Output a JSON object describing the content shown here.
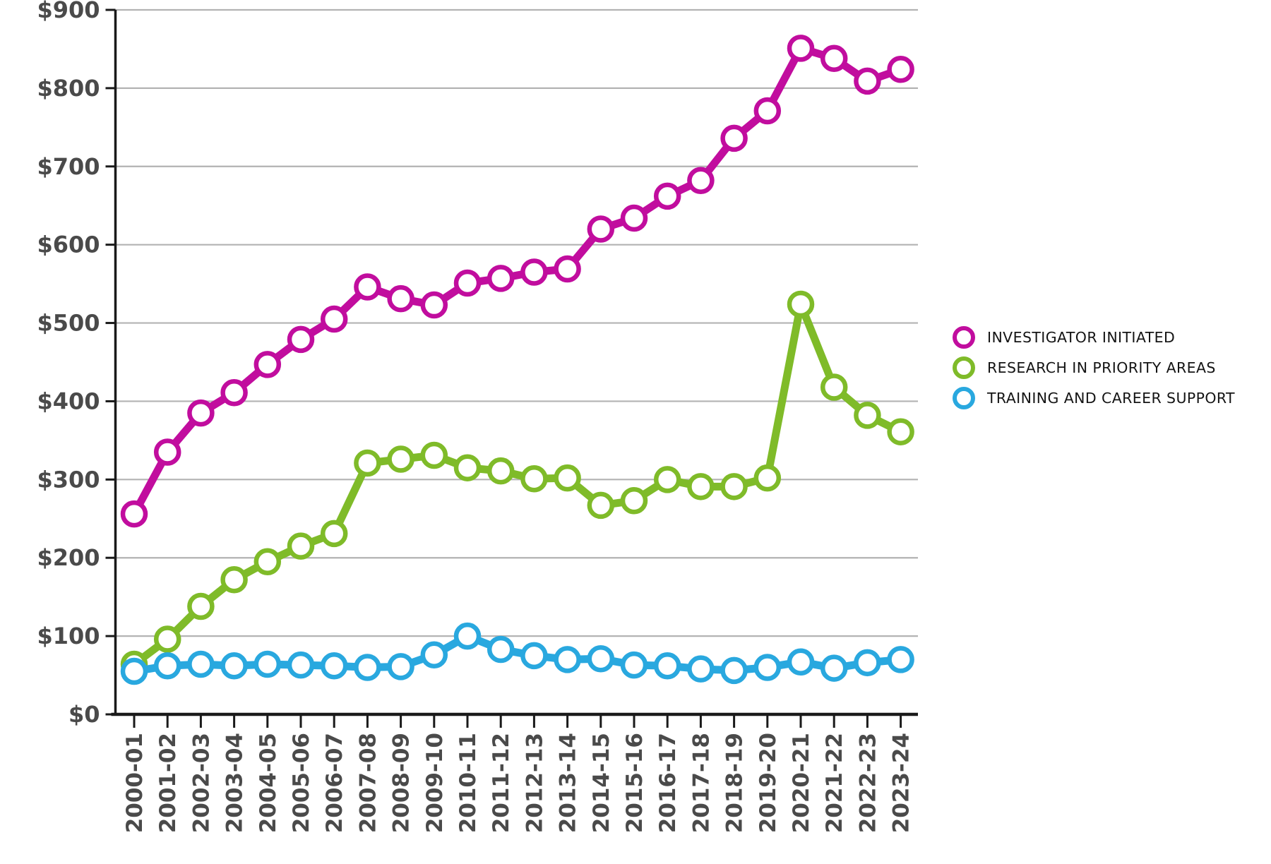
{
  "chart_data": {
    "type": "line",
    "title": "",
    "xlabel": "",
    "ylabel": "",
    "categories": [
      "2000-01",
      "2001-02",
      "2002-03",
      "2003-04",
      "2004-05",
      "2005-06",
      "2006-07",
      "2007-08",
      "2008-09",
      "2009-10",
      "2010-11",
      "2011-12",
      "2012-13",
      "2013-14",
      "2014-15",
      "2015-16",
      "2016-17",
      "2017-18",
      "2018-19",
      "2019-20",
      "2020-21",
      "2021-22",
      "2022-23",
      "2023-24"
    ],
    "series": [
      {
        "name": "INVESTIGATOR INITIATED",
        "color": "#c10d9e",
        "values": [
          256,
          335,
          385,
          411,
          447,
          479,
          505,
          546,
          531,
          523,
          551,
          557,
          565,
          569,
          620,
          634,
          662,
          682,
          736,
          771,
          851,
          838,
          809,
          824
        ]
      },
      {
        "name": "RESEARCH IN PRIORITY AREAS",
        "color": "#7fbb29",
        "values": [
          64,
          96,
          138,
          172,
          195,
          215,
          231,
          321,
          326,
          331,
          315,
          311,
          301,
          302,
          267,
          273,
          300,
          291,
          291,
          302,
          524,
          418,
          382,
          361
        ]
      },
      {
        "name": "TRAINING AND CAREER SUPPORT",
        "color": "#29a8df",
        "values": [
          55,
          62,
          64,
          62,
          64,
          63,
          62,
          60,
          61,
          76,
          100,
          83,
          75,
          70,
          71,
          63,
          62,
          58,
          56,
          60,
          67,
          59,
          66,
          70
        ]
      }
    ],
    "ylim": [
      0,
      900
    ],
    "ytick_step": 100,
    "ytick_labels": [
      "$0",
      "$100",
      "$200",
      "$300",
      "$400",
      "$500",
      "$600",
      "$700",
      "$800",
      "$900"
    ],
    "grid": true,
    "gridline_color": "#b3b3b3",
    "axis_color": "#1a1a1a",
    "tick_label_color": "#4a4a4a",
    "legend_position": "right",
    "marker": "circle-open"
  }
}
